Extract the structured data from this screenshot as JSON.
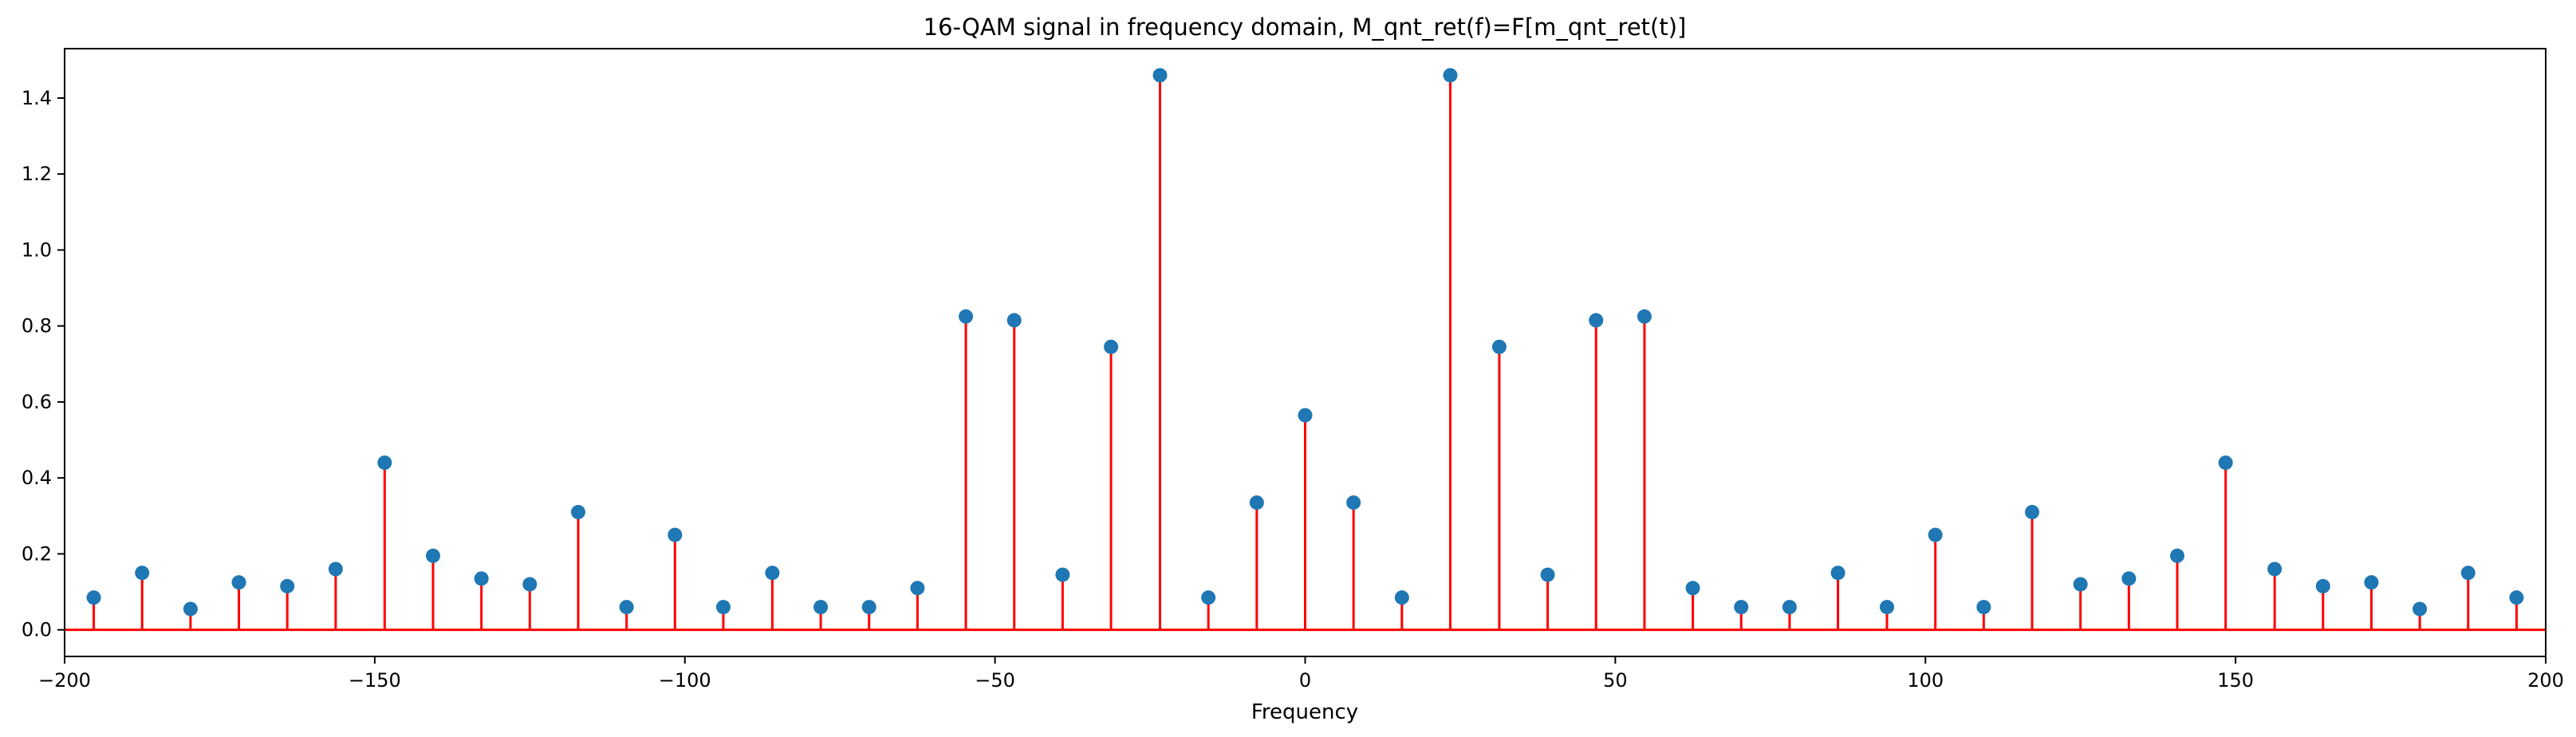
{
  "chart_data": {
    "type": "stem",
    "title": "16-QAM signal in frequency domain, M_qnt_ret(f)=F[m_qnt_ret(t)]",
    "xlabel": "Frequency",
    "ylabel": "",
    "xlim": [
      -200,
      200
    ],
    "ylim": [
      -0.07,
      1.53
    ],
    "xticks": [
      -200,
      -150,
      -100,
      -50,
      0,
      50,
      100,
      150,
      200
    ],
    "xtick_labels": [
      "−200",
      "−150",
      "−100",
      "−50",
      "0",
      "50",
      "100",
      "150",
      "200"
    ],
    "yticks": [
      0.0,
      0.2,
      0.4,
      0.6,
      0.8,
      1.0,
      1.2,
      1.4
    ],
    "ytick_labels": [
      "0.0",
      "0.2",
      "0.4",
      "0.6",
      "0.8",
      "1.0",
      "1.2",
      "1.4"
    ],
    "grid": false,
    "stem_color": "#ff0000",
    "marker_color": "#1f77b4",
    "baseline_color": "#ff0000",
    "x": [
      -195.3,
      -187.5,
      -179.7,
      -171.9,
      -164.1,
      -156.3,
      -148.4,
      -140.6,
      -132.8,
      -125.0,
      -117.2,
      -109.4,
      -101.6,
      -93.8,
      -85.9,
      -78.1,
      -70.3,
      -62.5,
      -54.7,
      -46.9,
      -39.1,
      -31.3,
      -23.4,
      -15.6,
      -7.8,
      0.0,
      7.8,
      15.6,
      23.4,
      31.3,
      39.1,
      46.9,
      54.7,
      62.5,
      70.3,
      78.1,
      85.9,
      93.8,
      101.6,
      109.4,
      117.2,
      125.0,
      132.8,
      140.6,
      148.4,
      156.3,
      164.1,
      171.9,
      179.7,
      187.5,
      195.3
    ],
    "y": [
      0.085,
      0.15,
      0.055,
      0.125,
      0.115,
      0.16,
      0.44,
      0.195,
      0.135,
      0.12,
      0.31,
      0.06,
      0.25,
      0.06,
      0.15,
      0.06,
      0.06,
      0.11,
      0.825,
      0.815,
      0.145,
      0.745,
      1.46,
      0.085,
      0.335,
      0.565,
      0.335,
      0.085,
      1.46,
      0.745,
      0.145,
      0.815,
      0.825,
      0.11,
      0.06,
      0.06,
      0.15,
      0.06,
      0.25,
      0.06,
      0.31,
      0.12,
      0.135,
      0.195,
      0.44,
      0.16,
      0.115,
      0.125,
      0.055,
      0.15,
      0.085
    ]
  }
}
